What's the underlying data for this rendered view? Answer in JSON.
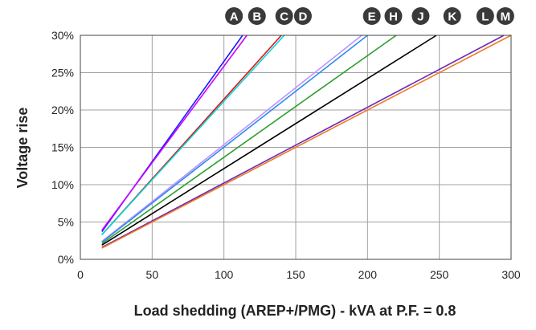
{
  "chart_data": {
    "type": "line",
    "xlabel": "Load shedding (AREP+/PMG) - kVA at P.F. = 0.8",
    "ylabel": "Voltage rise",
    "xlim": [
      0,
      300
    ],
    "ylim": [
      0,
      30
    ],
    "x_ticks": [
      "0",
      "50",
      "100",
      "150",
      "200",
      "250",
      "300"
    ],
    "y_ticks": [
      "0%",
      "5%",
      "10%",
      "15%",
      "20%",
      "25%",
      "30%"
    ],
    "grid": true,
    "series": [
      {
        "name": "A",
        "color": "#1a1aff",
        "x": [
          15,
          113
        ],
        "y": [
          3.7,
          30
        ]
      },
      {
        "name": "B",
        "color": "#cc00ff",
        "x": [
          15,
          116
        ],
        "y": [
          3.9,
          30
        ]
      },
      {
        "name": "C",
        "color": "#e01010",
        "x": [
          15,
          140
        ],
        "y": [
          3.3,
          30
        ]
      },
      {
        "name": "D",
        "color": "#00d8d8",
        "x": [
          15,
          142
        ],
        "y": [
          3.3,
          30
        ]
      },
      {
        "name": "E",
        "color": "#c090ff",
        "x": [
          15,
          196
        ],
        "y": [
          2.4,
          30
        ]
      },
      {
        "name": "H",
        "color": "#2a8cf0",
        "x": [
          15,
          200
        ],
        "y": [
          2.3,
          30
        ]
      },
      {
        "name": "J",
        "color": "#2e9e2e",
        "x": [
          15,
          220
        ],
        "y": [
          2.1,
          30
        ]
      },
      {
        "name": "K",
        "color": "#000000",
        "x": [
          15,
          248
        ],
        "y": [
          1.9,
          30
        ]
      },
      {
        "name": "L",
        "color": "#6a2ab8",
        "x": [
          15,
          295
        ],
        "y": [
          1.6,
          30
        ]
      },
      {
        "name": "M",
        "color": "#f07820",
        "x": [
          15,
          300
        ],
        "y": [
          1.5,
          30
        ]
      }
    ],
    "markers": [
      {
        "label": "A",
        "x": 107
      },
      {
        "label": "B",
        "x": 123
      },
      {
        "label": "C",
        "x": 142
      },
      {
        "label": "D",
        "x": 155
      },
      {
        "label": "E",
        "x": 203
      },
      {
        "label": "H",
        "x": 218
      },
      {
        "label": "J",
        "x": 237
      },
      {
        "label": "K",
        "x": 259
      },
      {
        "label": "L",
        "x": 282
      },
      {
        "label": "M",
        "x": 296
      }
    ]
  }
}
